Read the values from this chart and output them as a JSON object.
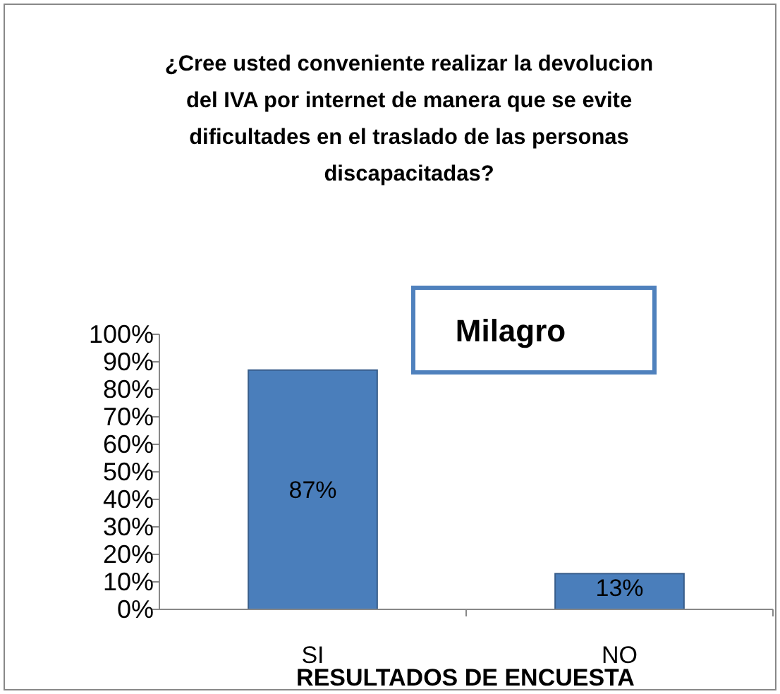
{
  "chart_data": {
    "type": "bar",
    "title": "¿Cree usted conveniente realizar la devolucion del IVA por internet de manera que se evite dificultades en el traslado de las personas discapacitadas?",
    "xlabel": "RESULTADOS DE ENCUESTA",
    "annotations": [
      "Milagro"
    ],
    "categories": [
      "SI",
      "NO"
    ],
    "values": [
      87,
      13
    ],
    "value_labels": [
      "87%",
      "13%"
    ],
    "color": "#4a7ebb",
    "ylim": [
      0,
      100
    ],
    "yticks": [
      {
        "value": 0,
        "label": "0%"
      },
      {
        "value": 10,
        "label": "10%"
      },
      {
        "value": 20,
        "label": "20%"
      },
      {
        "value": 30,
        "label": "30%"
      },
      {
        "value": 40,
        "label": "40%"
      },
      {
        "value": 50,
        "label": "50%"
      },
      {
        "value": 60,
        "label": "60%"
      },
      {
        "value": 70,
        "label": "70%"
      },
      {
        "value": 80,
        "label": "80%"
      },
      {
        "value": 90,
        "label": "90%"
      },
      {
        "value": 100,
        "label": "100%"
      }
    ]
  }
}
